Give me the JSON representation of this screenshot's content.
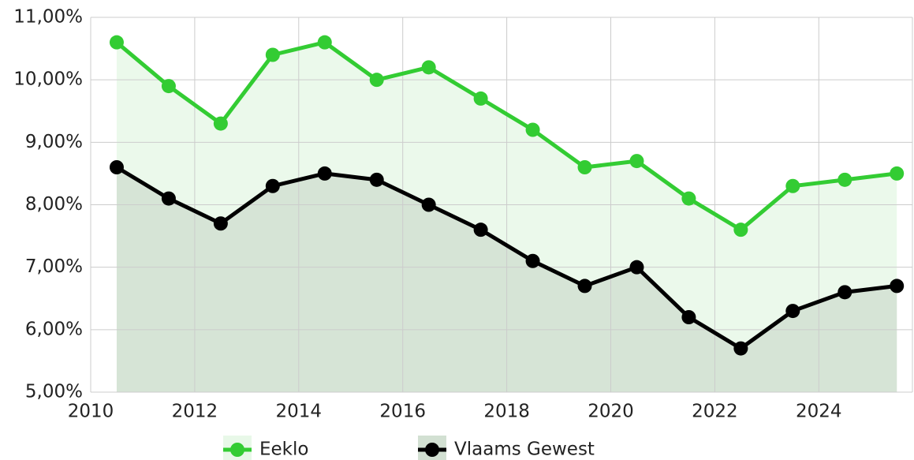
{
  "chart_data": {
    "type": "area",
    "x": [
      2010.5,
      2011.5,
      2012.5,
      2013.5,
      2014.5,
      2015.5,
      2016.5,
      2017.5,
      2018.5,
      2019.5,
      2020.5,
      2021.5,
      2022.5,
      2023.5,
      2024.5,
      2025.5
    ],
    "series": [
      {
        "name": "Eeklo",
        "color": "#33cc33",
        "area_color": "#e8f8e8",
        "values": [
          10.6,
          9.9,
          9.3,
          10.4,
          10.6,
          10.0,
          10.2,
          9.7,
          9.2,
          8.6,
          8.7,
          8.1,
          7.6,
          8.3,
          8.4,
          8.5
        ]
      },
      {
        "name": "Vlaams Gewest",
        "color": "#000000",
        "area_color": "#d2e0d2",
        "values": [
          8.6,
          8.1,
          7.7,
          8.3,
          8.5,
          8.4,
          8.0,
          7.6,
          7.1,
          6.7,
          7.0,
          6.2,
          5.7,
          6.3,
          6.6,
          6.7
        ]
      }
    ],
    "xlim": [
      2010,
      2025.8
    ],
    "xticks": [
      2010,
      2012,
      2014,
      2016,
      2018,
      2020,
      2022,
      2024
    ],
    "ylim": [
      5,
      11
    ],
    "yticks": [
      {
        "value": 5,
        "label": "5,00%"
      },
      {
        "value": 6,
        "label": "6,00%"
      },
      {
        "value": 7,
        "label": "7,00%"
      },
      {
        "value": 8,
        "label": "8,00%"
      },
      {
        "value": 9,
        "label": "9,00%"
      },
      {
        "value": 10,
        "label": "10,00%"
      },
      {
        "value": 11,
        "label": "11,00%"
      }
    ],
    "grid": true,
    "legend": "bottom"
  }
}
